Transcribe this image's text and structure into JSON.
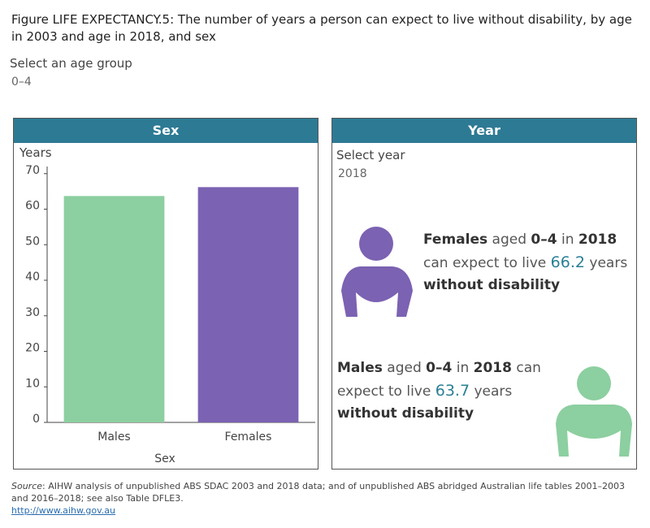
{
  "title": "Figure LIFE EXPECTANCY.5: The number of years a person can expect to live without disability, by age in 2003 and age in 2018, and sex",
  "age_filter": {
    "label": "Select an age group",
    "value": "0–4"
  },
  "chart_data": {
    "type": "bar",
    "title": "Sex",
    "y_label": "Years",
    "x_label": "Sex",
    "categories": [
      "Males",
      "Females"
    ],
    "values": [
      63.7,
      66.2
    ],
    "colors": [
      "#8ccfa0",
      "#7b62b2"
    ],
    "ylim": [
      0,
      72
    ],
    "yticks": [
      0,
      10,
      20,
      30,
      40,
      50,
      60,
      70
    ],
    "grid": false
  },
  "year_panel": {
    "title": "Year",
    "filter": {
      "label": "Select year",
      "value": "2018"
    },
    "female_callout": [
      "Females",
      " aged ",
      "0–4",
      " in ",
      "2018",
      "can expect to live ",
      " years",
      "without disability"
    ],
    "male_callout": [
      "Males",
      " aged ",
      "0–4",
      " in ",
      "2018",
      " can",
      "expect to live ",
      " years",
      "without disability"
    ]
  },
  "source": {
    "label": "Source",
    "text": ": AIHW analysis of unpublished ABS SDAC 2003 and 2018 data; and of unpublished ABS abridged Australian life tables 2001–2003 and 2016–2018; see also Table DFLE3.",
    "link": "http://www.aihw.gov.au"
  }
}
